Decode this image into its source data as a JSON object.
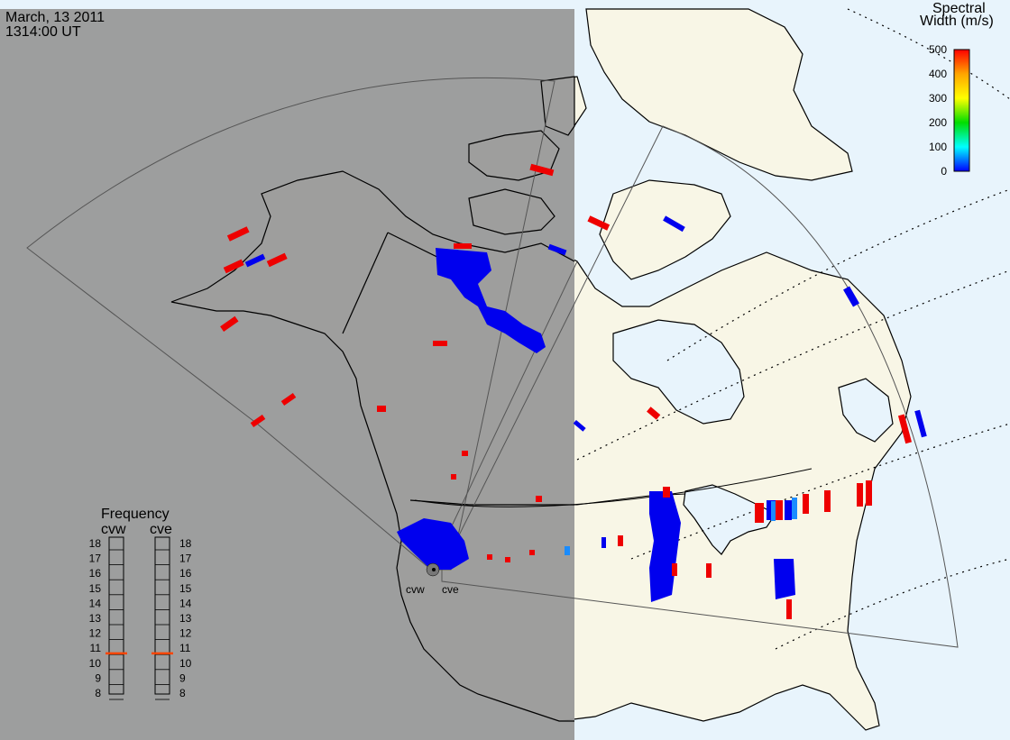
{
  "header": {
    "date": "March, 13 2011",
    "time": "1314:00 UT"
  },
  "colorbar": {
    "title_line1": "Spectral",
    "title_line2": "Width (m/s)",
    "min": 0,
    "max": 500,
    "ticks": [
      "500",
      "400",
      "300",
      "200",
      "100",
      "0"
    ],
    "colors": {
      "high": "#ff0000",
      "mid_high": "#ffa500",
      "mid": "#ffff00",
      "mid_low": "#00dd00",
      "low_mid": "#00ffff",
      "low": "#0000ff"
    }
  },
  "frequency_panel": {
    "title": "Frequency",
    "left_label": "cvw",
    "right_label": "cve",
    "ticks": [
      "18",
      "17",
      "16",
      "15",
      "14",
      "13",
      "12",
      "11",
      "10",
      "9",
      "8"
    ],
    "range_mhz": [
      8,
      18
    ],
    "cvw_value_mhz": 10.6,
    "cve_value_mhz": 10.6,
    "marker_color": "#ff4500"
  },
  "radar_sites": {
    "west": "cvw",
    "east": "cve"
  },
  "map": {
    "night_color": "#999999",
    "land_color": "#f8f6e6",
    "ocean_color": "#e8f4fc",
    "coast_color": "#000000"
  }
}
